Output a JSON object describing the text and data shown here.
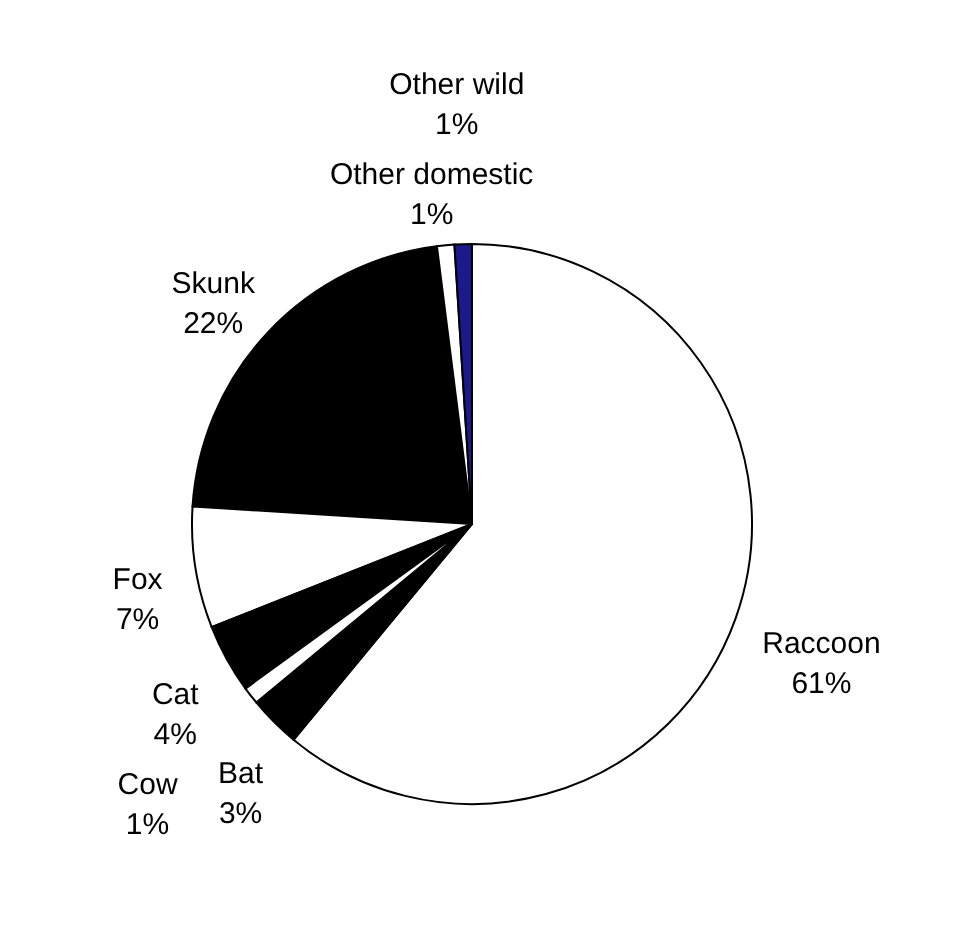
{
  "chart_data": {
    "type": "pie",
    "categories": [
      "Raccoon",
      "Bat",
      "Cow",
      "Cat",
      "Fox",
      "Skunk",
      "Other domestic",
      "Other wild"
    ],
    "values": [
      61,
      3,
      1,
      4,
      7,
      22,
      1,
      1
    ],
    "value_labels": [
      "61%",
      "3%",
      "1%",
      "4%",
      "7%",
      "22%",
      "1%",
      "1%"
    ],
    "colors": [
      "#ffffff",
      "#000000",
      "#ffffff",
      "#000000",
      "#ffffff",
      "#000000",
      "#ffffff",
      "#1a1a8c"
    ],
    "legend": false
  }
}
